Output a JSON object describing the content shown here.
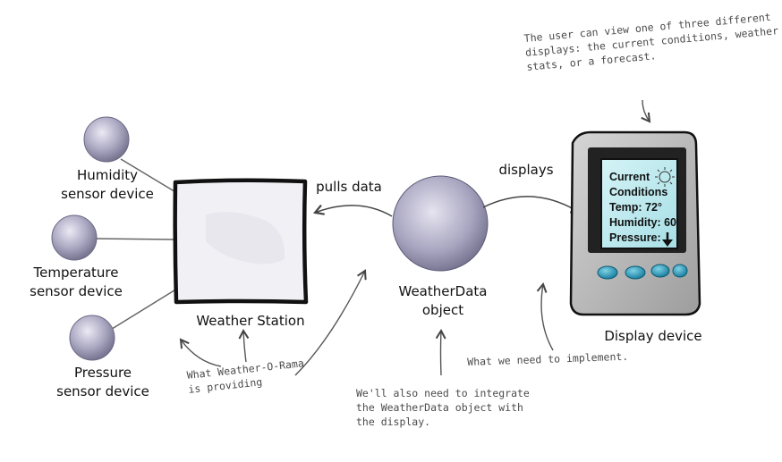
{
  "sensors": [
    {
      "line1": "Humidity",
      "line2": "sensor device"
    },
    {
      "line1": "Temperature",
      "line2": "sensor device"
    },
    {
      "line1": "Pressure",
      "line2": "sensor device"
    }
  ],
  "station": {
    "label": "Weather Station"
  },
  "weatherdata": {
    "line1": "WeatherData",
    "line2": "object"
  },
  "display": {
    "label": "Display device",
    "screen": {
      "line1": "Current",
      "line2": "Conditions",
      "line3": "Temp: 72°",
      "line4": "Humidity: 60",
      "line5": "Pressure:"
    }
  },
  "arrows": {
    "pulls": "pulls data",
    "displays": "displays"
  },
  "notes": {
    "user": {
      "line1": "The user can view one of three different",
      "line2": "displays: the current conditions, weather",
      "line3": "stats, or a forecast."
    },
    "provided": {
      "line1": "What Weather-O-Rama",
      "line2": "is providing"
    },
    "integrate": {
      "line1": "We'll also need to integrate",
      "line2": "the WeatherData object with",
      "line3": "the display."
    },
    "implement": {
      "line1": "What we need to implement."
    }
  }
}
